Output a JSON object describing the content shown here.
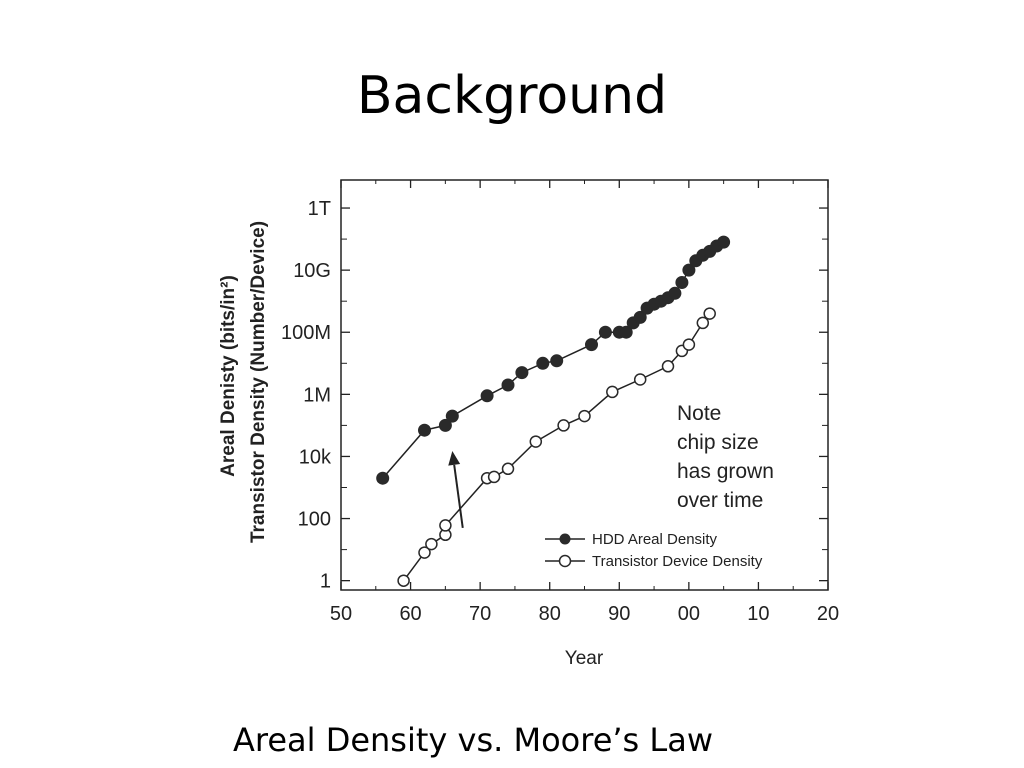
{
  "slide": {
    "title": "Background",
    "caption": "Areal Density vs. Moore’s Law"
  },
  "chart_data": {
    "type": "scatter",
    "xlabel": "Year",
    "ylabel_lines": [
      "Areal Denisty (bits/in²)",
      "Transistor Density (Number/Device)"
    ],
    "x_ticks": [
      {
        "value": 1950,
        "label": "50"
      },
      {
        "value": 1960,
        "label": "60"
      },
      {
        "value": 1970,
        "label": "70"
      },
      {
        "value": 1980,
        "label": "80"
      },
      {
        "value": 1990,
        "label": "90"
      },
      {
        "value": 2000,
        "label": "00"
      },
      {
        "value": 2010,
        "label": "10"
      },
      {
        "value": 2020,
        "label": "20"
      }
    ],
    "y_scale": "log",
    "y_ticks": [
      {
        "value": 1,
        "label": "1"
      },
      {
        "value": 100,
        "label": "100"
      },
      {
        "value": 10000,
        "label": "10k"
      },
      {
        "value": 1000000,
        "label": "1M"
      },
      {
        "value": 100000000,
        "label": "100M"
      },
      {
        "value": 10000000000,
        "label": "10G"
      },
      {
        "value": 1000000000000,
        "label": "1T"
      }
    ],
    "xlim": [
      1950,
      2020
    ],
    "ylim": [
      0.5,
      8000000000000
    ],
    "grid": false,
    "legend_position": "bottom-right",
    "series": [
      {
        "name": "HDD Areal Density",
        "marker": "filled-circle",
        "x": [
          1956,
          1962,
          1965,
          1966,
          1971,
          1974,
          1976,
          1979,
          1981,
          1986,
          1988,
          1990,
          1991,
          1992,
          1993,
          1994,
          1995,
          1996,
          1997,
          1998,
          1999,
          2000,
          2001,
          2002,
          2003,
          2004,
          2005
        ],
        "y": [
          2000,
          70000,
          100000,
          200000,
          900000,
          2000000,
          5000000,
          10000000,
          12000000,
          40000000,
          100000000,
          100000000,
          100000000,
          200000000,
          300000000,
          600000000,
          800000000,
          1000000000,
          1300000000,
          1800000000,
          4000000000,
          10000000000,
          20000000000,
          30000000000,
          40000000000,
          60000000000,
          80000000000
        ]
      },
      {
        "name": "Transistor Device Density",
        "marker": "open-circle",
        "x": [
          1959,
          1962,
          1963,
          1965,
          1965,
          1971,
          1972,
          1974,
          1978,
          1982,
          1985,
          1989,
          1993,
          1997,
          1999,
          2000,
          2002,
          2003
        ],
        "y": [
          1,
          8,
          15,
          30,
          60,
          2000,
          2200,
          4000,
          30000,
          100000,
          200000,
          1200000,
          3000000,
          8000000,
          25000000,
          40000000,
          200000000,
          400000000
        ]
      }
    ],
    "annotations": [
      {
        "lines": [
          "Note",
          "chip size",
          "has grown",
          "over time"
        ]
      }
    ],
    "arrow": {
      "from": [
        1967.5,
        50
      ],
      "to": [
        1966,
        15000
      ]
    }
  },
  "colors": {
    "axis": "#222222",
    "marker": "#2a2a2a",
    "background": "#ffffff"
  }
}
